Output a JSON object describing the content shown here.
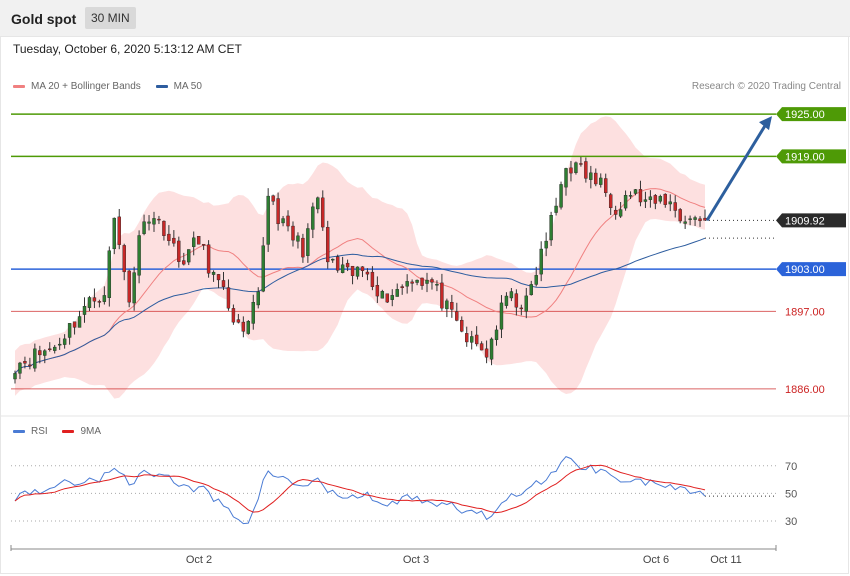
{
  "header": {
    "title": "Gold spot",
    "timeframe": "30 MIN",
    "datetime": "Tuesday, October 6, 2020 5:13:12 AM CET",
    "credit": "Research © 2020 Trading Central"
  },
  "legend_main": [
    {
      "label": "MA 20 + Bollinger Bands",
      "color": "#f08080"
    },
    {
      "label": "MA 50",
      "color": "#2e5d9f"
    }
  ],
  "legend_rsi": [
    {
      "label": "RSI",
      "color": "#4a7bd4"
    },
    {
      "label": "9MA",
      "color": "#e02020"
    }
  ],
  "chart_data": {
    "type": "candlestick",
    "ylim": [
      1883,
      1928
    ],
    "x_labels": [
      "Oct 2",
      "Oct 3",
      "Oct 6",
      "Oct 11"
    ],
    "candle_count": 140,
    "price_start": 1889.5,
    "price_end": 1909.92,
    "levels": [
      {
        "value": 1925.0,
        "label": "1925.00",
        "color": "#4e9a06",
        "kind": "resistance"
      },
      {
        "value": 1919.0,
        "label": "1919.00",
        "color": "#4e9a06",
        "kind": "resistance"
      },
      {
        "value": 1909.92,
        "label": "1909.92",
        "color": "#2b2b2b",
        "kind": "last"
      },
      {
        "value": 1903.0,
        "label": "1903.00",
        "color": "#2b63d9",
        "kind": "pivot"
      },
      {
        "value": 1897.0,
        "label": "1897.00",
        "color": "#cc2222",
        "kind": "support"
      },
      {
        "value": 1886.0,
        "label": "1886.00",
        "color": "#cc2222",
        "kind": "support"
      }
    ],
    "close_path": [
      {
        "i": 0,
        "p": 1889.5
      },
      {
        "i": 8,
        "p": 1892
      },
      {
        "i": 14,
        "p": 1897.5
      },
      {
        "i": 18,
        "p": 1900
      },
      {
        "i": 20,
        "p": 1910
      },
      {
        "i": 23,
        "p": 1899
      },
      {
        "i": 26,
        "p": 1911
      },
      {
        "i": 30,
        "p": 1909
      },
      {
        "i": 33,
        "p": 1904
      },
      {
        "i": 37,
        "p": 1907
      },
      {
        "i": 40,
        "p": 1902
      },
      {
        "i": 43,
        "p": 1898
      },
      {
        "i": 46,
        "p": 1893
      },
      {
        "i": 49,
        "p": 1899
      },
      {
        "i": 51,
        "p": 1914
      },
      {
        "i": 54,
        "p": 1909
      },
      {
        "i": 58,
        "p": 1906
      },
      {
        "i": 61,
        "p": 1913
      },
      {
        "i": 63,
        "p": 1904
      },
      {
        "i": 67,
        "p": 1902
      },
      {
        "i": 71,
        "p": 1903
      },
      {
        "i": 74,
        "p": 1899
      },
      {
        "i": 77,
        "p": 1900
      },
      {
        "i": 80,
        "p": 1902
      },
      {
        "i": 84,
        "p": 1901
      },
      {
        "i": 88,
        "p": 1896
      },
      {
        "i": 91,
        "p": 1893
      },
      {
        "i": 95,
        "p": 1891
      },
      {
        "i": 97,
        "p": 1895
      },
      {
        "i": 99,
        "p": 1899
      },
      {
        "i": 103,
        "p": 1898
      },
      {
        "i": 106,
        "p": 1905
      },
      {
        "i": 109,
        "p": 1912
      },
      {
        "i": 111,
        "p": 1918
      },
      {
        "i": 114,
        "p": 1917
      },
      {
        "i": 118,
        "p": 1915
      },
      {
        "i": 121,
        "p": 1912
      },
      {
        "i": 124,
        "p": 1914
      },
      {
        "i": 128,
        "p": 1912
      },
      {
        "i": 131,
        "p": 1913
      },
      {
        "i": 134,
        "p": 1910.5
      },
      {
        "i": 137,
        "p": 1910
      },
      {
        "i": 139,
        "p": 1909.92
      }
    ],
    "projection": {
      "from": 1909.92,
      "to": 1925.0
    },
    "rsi": {
      "levels": [
        70,
        50,
        30
      ],
      "ylim": [
        22,
        80
      ],
      "rsi_path": [
        {
          "i": 0,
          "v": 48
        },
        {
          "i": 10,
          "v": 57
        },
        {
          "i": 18,
          "v": 62
        },
        {
          "i": 20,
          "v": 71
        },
        {
          "i": 23,
          "v": 55
        },
        {
          "i": 26,
          "v": 67
        },
        {
          "i": 30,
          "v": 63
        },
        {
          "i": 34,
          "v": 55
        },
        {
          "i": 38,
          "v": 52
        },
        {
          "i": 42,
          "v": 40
        },
        {
          "i": 45,
          "v": 32
        },
        {
          "i": 47,
          "v": 29
        },
        {
          "i": 51,
          "v": 67
        },
        {
          "i": 55,
          "v": 58
        },
        {
          "i": 58,
          "v": 55
        },
        {
          "i": 61,
          "v": 61
        },
        {
          "i": 63,
          "v": 50
        },
        {
          "i": 67,
          "v": 47
        },
        {
          "i": 71,
          "v": 48
        },
        {
          "i": 74,
          "v": 41
        },
        {
          "i": 77,
          "v": 44
        },
        {
          "i": 80,
          "v": 48
        },
        {
          "i": 84,
          "v": 44
        },
        {
          "i": 88,
          "v": 40
        },
        {
          "i": 91,
          "v": 37
        },
        {
          "i": 95,
          "v": 33
        },
        {
          "i": 97,
          "v": 40
        },
        {
          "i": 99,
          "v": 48
        },
        {
          "i": 103,
          "v": 50
        },
        {
          "i": 106,
          "v": 60
        },
        {
          "i": 109,
          "v": 66
        },
        {
          "i": 111,
          "v": 75
        },
        {
          "i": 114,
          "v": 70
        },
        {
          "i": 118,
          "v": 67
        },
        {
          "i": 121,
          "v": 62
        },
        {
          "i": 124,
          "v": 61
        },
        {
          "i": 128,
          "v": 57
        },
        {
          "i": 131,
          "v": 56
        },
        {
          "i": 134,
          "v": 52
        },
        {
          "i": 137,
          "v": 49
        },
        {
          "i": 139,
          "v": 48
        }
      ]
    }
  }
}
